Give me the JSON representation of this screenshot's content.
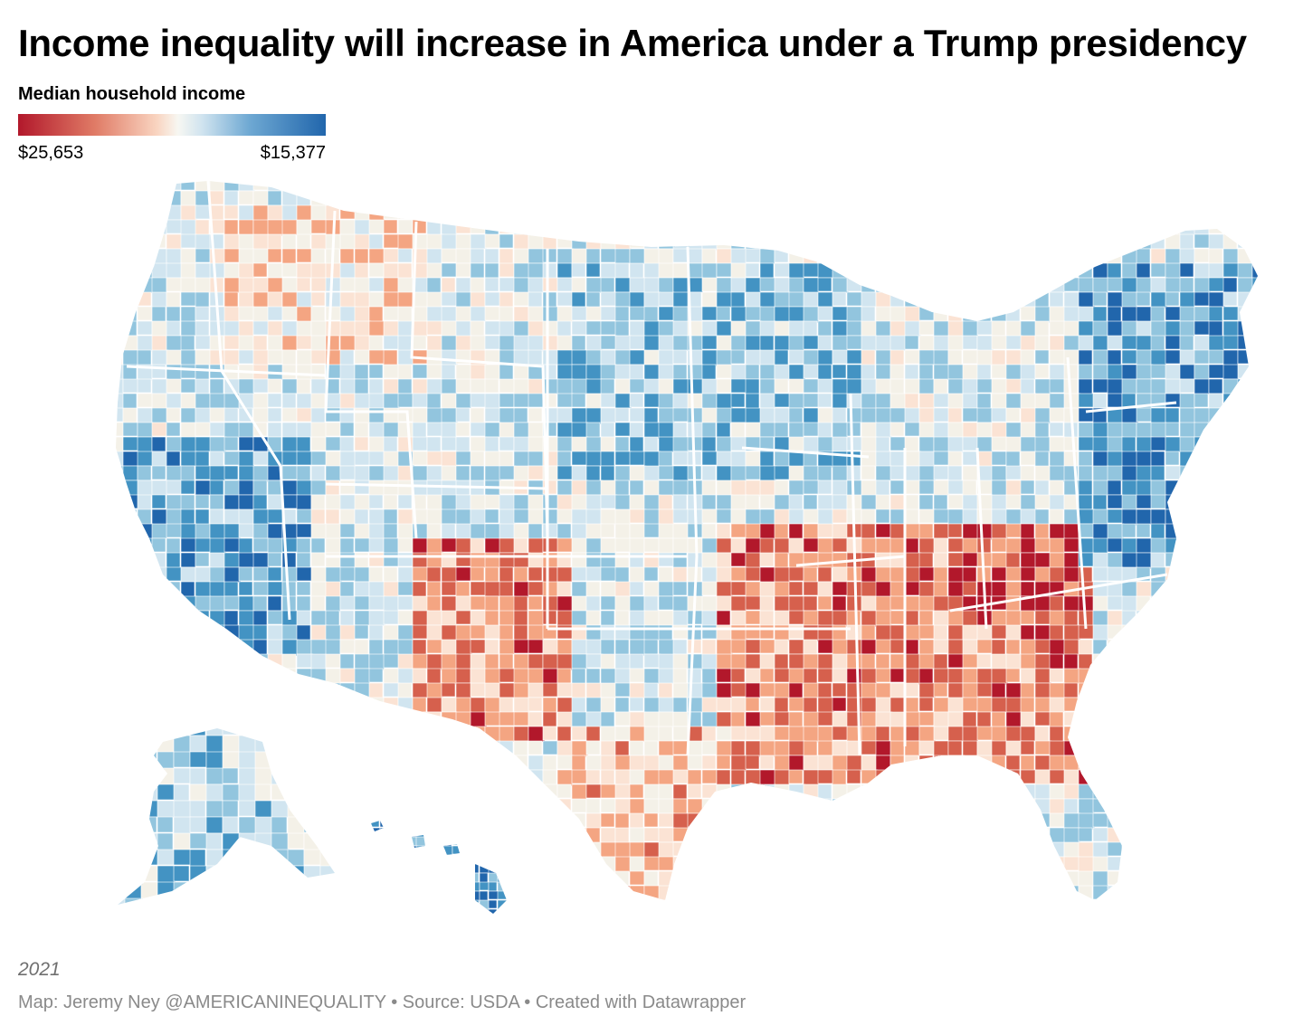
{
  "header": {
    "title": "Income inequality will increase in America under a Trump presidency"
  },
  "legend": {
    "title": "Median household income",
    "min_label": "$25,653",
    "max_label": "$15,377",
    "colors": [
      "#b2182b",
      "#d6604d",
      "#f4a582",
      "#fbe3d4",
      "#f7f7f2",
      "#d1e5f0",
      "#92c5de",
      "#4393c3",
      "#2166ac"
    ]
  },
  "map": {
    "region_names": [
      "Alaska",
      "Hawaii",
      "contiguous-us"
    ],
    "palette": {
      "deep_red": "#b2182b",
      "red": "#d6604d",
      "light_red": "#f4a582",
      "pale_red": "#fbe3d4",
      "neutral": "#f4f1e8",
      "pale_blue": "#d1e5f0",
      "light_blue": "#92c5de",
      "blue": "#4393c3",
      "deep_blue": "#2166ac"
    }
  },
  "footer": {
    "year": "2021",
    "credit": "Map: Jeremy Ney @AMERICANINEQUALITY • Source: USDA • Created with Datawrapper"
  }
}
